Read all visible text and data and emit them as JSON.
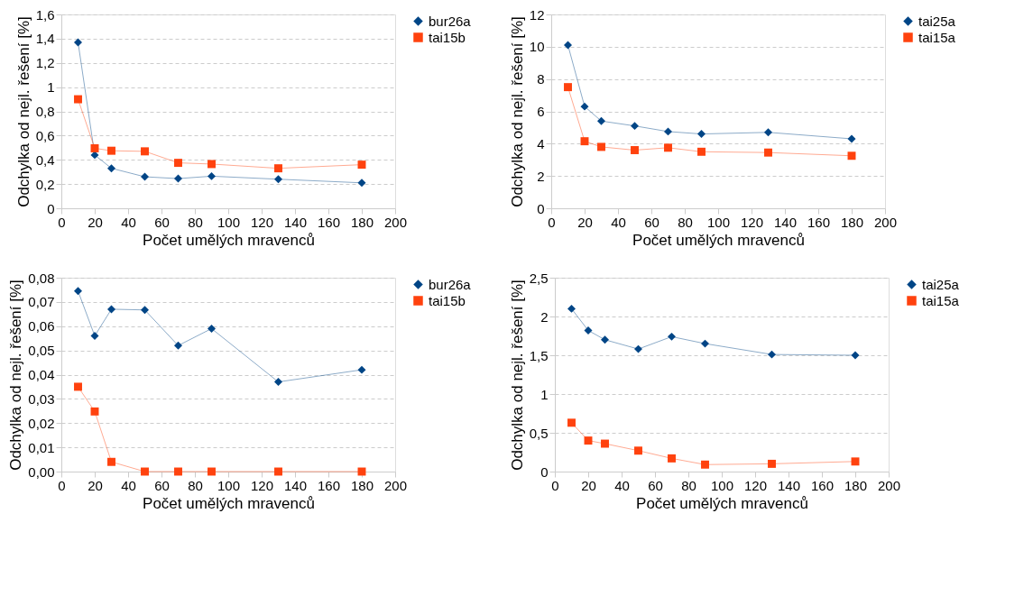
{
  "chart_data": [
    {
      "type": "line",
      "xlabel": "Počet umělých mravenců",
      "ylabel": "Odchylka od nejl. řešení [%]",
      "x": [
        10,
        20,
        30,
        50,
        70,
        90,
        130,
        180
      ],
      "xlim": [
        0,
        200
      ],
      "xticks": [
        0,
        20,
        40,
        60,
        80,
        100,
        120,
        140,
        160,
        180,
        200
      ],
      "ylim": [
        0,
        1.6
      ],
      "yticks": [
        0,
        {
          "value": 0.2,
          "label": "0,2"
        },
        {
          "value": 0.4,
          "label": "0,4"
        },
        {
          "value": 0.6,
          "label": "0,6"
        },
        {
          "value": 0.8,
          "label": "0,8"
        },
        1,
        {
          "value": 1.2,
          "label": "1,2"
        },
        {
          "value": 1.4,
          "label": "1,4"
        },
        {
          "value": 1.6,
          "label": "1,6"
        }
      ],
      "grid": "y",
      "legend": "right",
      "line_style": "solid",
      "series": [
        {
          "name": "bur26a",
          "color": "#004586",
          "marker": "diamond",
          "values": [
            1.37,
            0.44,
            0.33,
            0.26,
            0.245,
            0.265,
            0.24,
            0.21
          ]
        },
        {
          "name": "tai15b",
          "color": "#ff420e",
          "marker": "square",
          "values": [
            0.9,
            0.495,
            0.475,
            0.47,
            0.375,
            0.365,
            0.33,
            0.36
          ]
        }
      ]
    },
    {
      "type": "line",
      "xlabel": "Počet umělých mravenců",
      "ylabel": "Odchylka od nejl. řešení [%]",
      "x": [
        10,
        20,
        30,
        50,
        70,
        90,
        130,
        180
      ],
      "xlim": [
        0,
        200
      ],
      "xticks": [
        0,
        20,
        40,
        60,
        80,
        100,
        120,
        140,
        160,
        180,
        200
      ],
      "ylim": [
        0,
        12
      ],
      "yticks": [
        0,
        2,
        4,
        6,
        8,
        10,
        12
      ],
      "grid": "y",
      "legend": "right",
      "line_style": "solid",
      "series": [
        {
          "name": "tai25a",
          "color": "#004586",
          "marker": "diamond",
          "values": [
            10.1,
            6.3,
            5.4,
            5.1,
            4.75,
            4.6,
            4.7,
            4.3
          ]
        },
        {
          "name": "tai15a",
          "color": "#ff420e",
          "marker": "square",
          "values": [
            7.5,
            4.15,
            3.8,
            3.6,
            3.75,
            3.5,
            3.45,
            3.25
          ]
        }
      ]
    },
    {
      "type": "line",
      "xlabel": "Počet umělých mravenců",
      "ylabel": "Odchylka od nejl. řešení [%]",
      "x": [
        10,
        20,
        30,
        50,
        70,
        90,
        130,
        180
      ],
      "xlim": [
        0,
        200
      ],
      "xticks": [
        0,
        20,
        40,
        60,
        80,
        100,
        120,
        140,
        160,
        180,
        200
      ],
      "ylim": [
        0,
        0.08
      ],
      "yticks": [
        {
          "value": 0,
          "label": "0,00"
        },
        {
          "value": 0.01,
          "label": "0,01"
        },
        {
          "value": 0.02,
          "label": "0,02"
        },
        {
          "value": 0.03,
          "label": "0,03"
        },
        {
          "value": 0.04,
          "label": "0,04"
        },
        {
          "value": 0.05,
          "label": "0,05"
        },
        {
          "value": 0.06,
          "label": "0,06"
        },
        {
          "value": 0.07,
          "label": "0,07"
        },
        {
          "value": 0.08,
          "label": "0,08"
        }
      ],
      "grid": "y",
      "legend": "right",
      "line_style": "solid",
      "series": [
        {
          "name": "bur26a",
          "color": "#004586",
          "marker": "diamond",
          "values": [
            0.0745,
            0.056,
            0.067,
            0.0667,
            0.052,
            0.059,
            0.037,
            0.042
          ]
        },
        {
          "name": "tai15b",
          "color": "#ff420e",
          "marker": "square",
          "values": [
            0.035,
            0.0248,
            0.004,
            0,
            0,
            0,
            0,
            0
          ]
        }
      ]
    },
    {
      "type": "line",
      "xlabel": "Počet umělých mravenců",
      "ylabel": "Odchylka od nejl. řešení [%]",
      "x": [
        10,
        20,
        30,
        50,
        70,
        90,
        130,
        180
      ],
      "xlim": [
        0,
        200
      ],
      "xticks": [
        0,
        20,
        40,
        60,
        80,
        100,
        120,
        140,
        160,
        180,
        200
      ],
      "ylim": [
        0,
        2.5
      ],
      "yticks": [
        0,
        {
          "value": 0.5,
          "label": "0,5"
        },
        1,
        {
          "value": 1.5,
          "label": "1,5"
        },
        2,
        {
          "value": 2.5,
          "label": "2,5"
        }
      ],
      "grid": "y",
      "legend": "right",
      "line_style": "solid",
      "series": [
        {
          "name": "tai25a",
          "color": "#004586",
          "marker": "diamond",
          "values": [
            2.1,
            1.82,
            1.7,
            1.58,
            1.74,
            1.65,
            1.51,
            1.5
          ]
        },
        {
          "name": "tai15a",
          "color": "#ff420e",
          "marker": "square",
          "values": [
            0.63,
            0.4,
            0.36,
            0.27,
            0.17,
            0.09,
            0.1,
            0.13
          ]
        }
      ]
    }
  ]
}
